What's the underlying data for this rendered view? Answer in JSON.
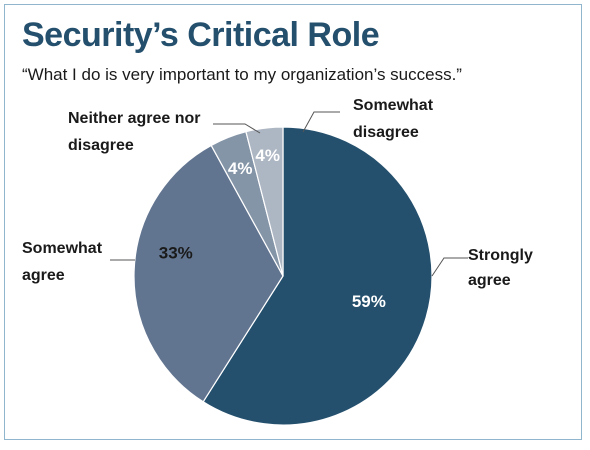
{
  "header": {
    "title": "Security’s Critical Role",
    "subtitle": "“What I do is very important to my organization’s success.”"
  },
  "chart_data": {
    "type": "pie",
    "categories": [
      "Strongly agree",
      "Somewhat agree",
      "Neither agree nor disagree",
      "Somewhat disagree"
    ],
    "values": [
      59,
      33,
      4,
      4
    ],
    "labels": {
      "Strongly agree": [
        "Strongly",
        "agree"
      ],
      "Somewhat agree": [
        "Somewhat",
        "agree"
      ],
      "Neither agree nor disagree": [
        "Neither agree nor",
        "disagree"
      ],
      "Somewhat disagree": [
        "Somewhat",
        "disagree"
      ]
    },
    "value_labels": [
      "59%",
      "33%",
      "4%",
      "4%"
    ],
    "colors": [
      "#24506e",
      "#627590",
      "#8595a8",
      "#adb6c3"
    ],
    "value_label_colors": [
      "#ffffff",
      "#1a1a1a",
      "#ffffff",
      "#ffffff"
    ],
    "title": "Security’s Critical Role",
    "legend": "none"
  }
}
